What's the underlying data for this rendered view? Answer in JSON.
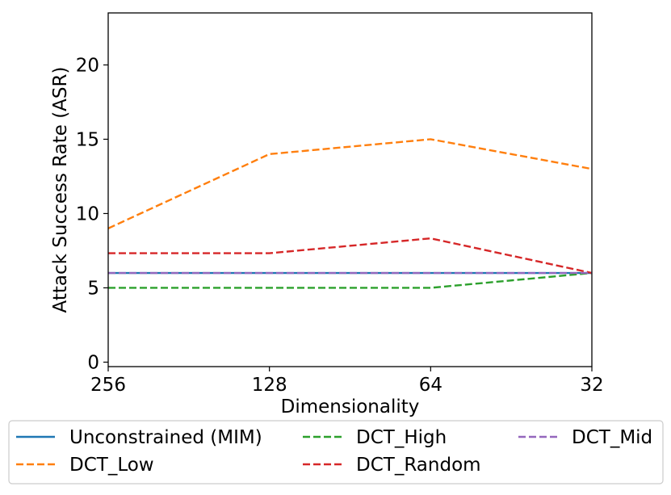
{
  "chart_data": {
    "type": "line",
    "title": "",
    "xlabel": "Dimensionality",
    "ylabel": "Attack Success Rate (ASR)",
    "categories": [
      "256",
      "128",
      "64",
      "32"
    ],
    "ylim": [
      -0.3,
      23.5
    ],
    "yticks": [
      0,
      5,
      10,
      15,
      20
    ],
    "grid": false,
    "legend_position": "bottom",
    "series": [
      {
        "name": "Unconstrained (MIM)",
        "color": "#1f77b4",
        "dash": "solid",
        "values": [
          6.0,
          6.0,
          6.0,
          6.0
        ]
      },
      {
        "name": "DCT_Low",
        "color": "#ff7f0e",
        "dash": "dashed",
        "values": [
          9.0,
          14.0,
          15.0,
          13.0
        ]
      },
      {
        "name": "DCT_High",
        "color": "#2ca02c",
        "dash": "dashed",
        "values": [
          5.0,
          5.0,
          5.0,
          6.0
        ]
      },
      {
        "name": "DCT_Random",
        "color": "#d62728",
        "dash": "dashed",
        "values": [
          7.33,
          7.33,
          8.33,
          6.0
        ]
      },
      {
        "name": "DCT_Mid",
        "color": "#9467bd",
        "dash": "dashed",
        "values": [
          6.0,
          6.0,
          6.0,
          6.0
        ]
      }
    ]
  }
}
